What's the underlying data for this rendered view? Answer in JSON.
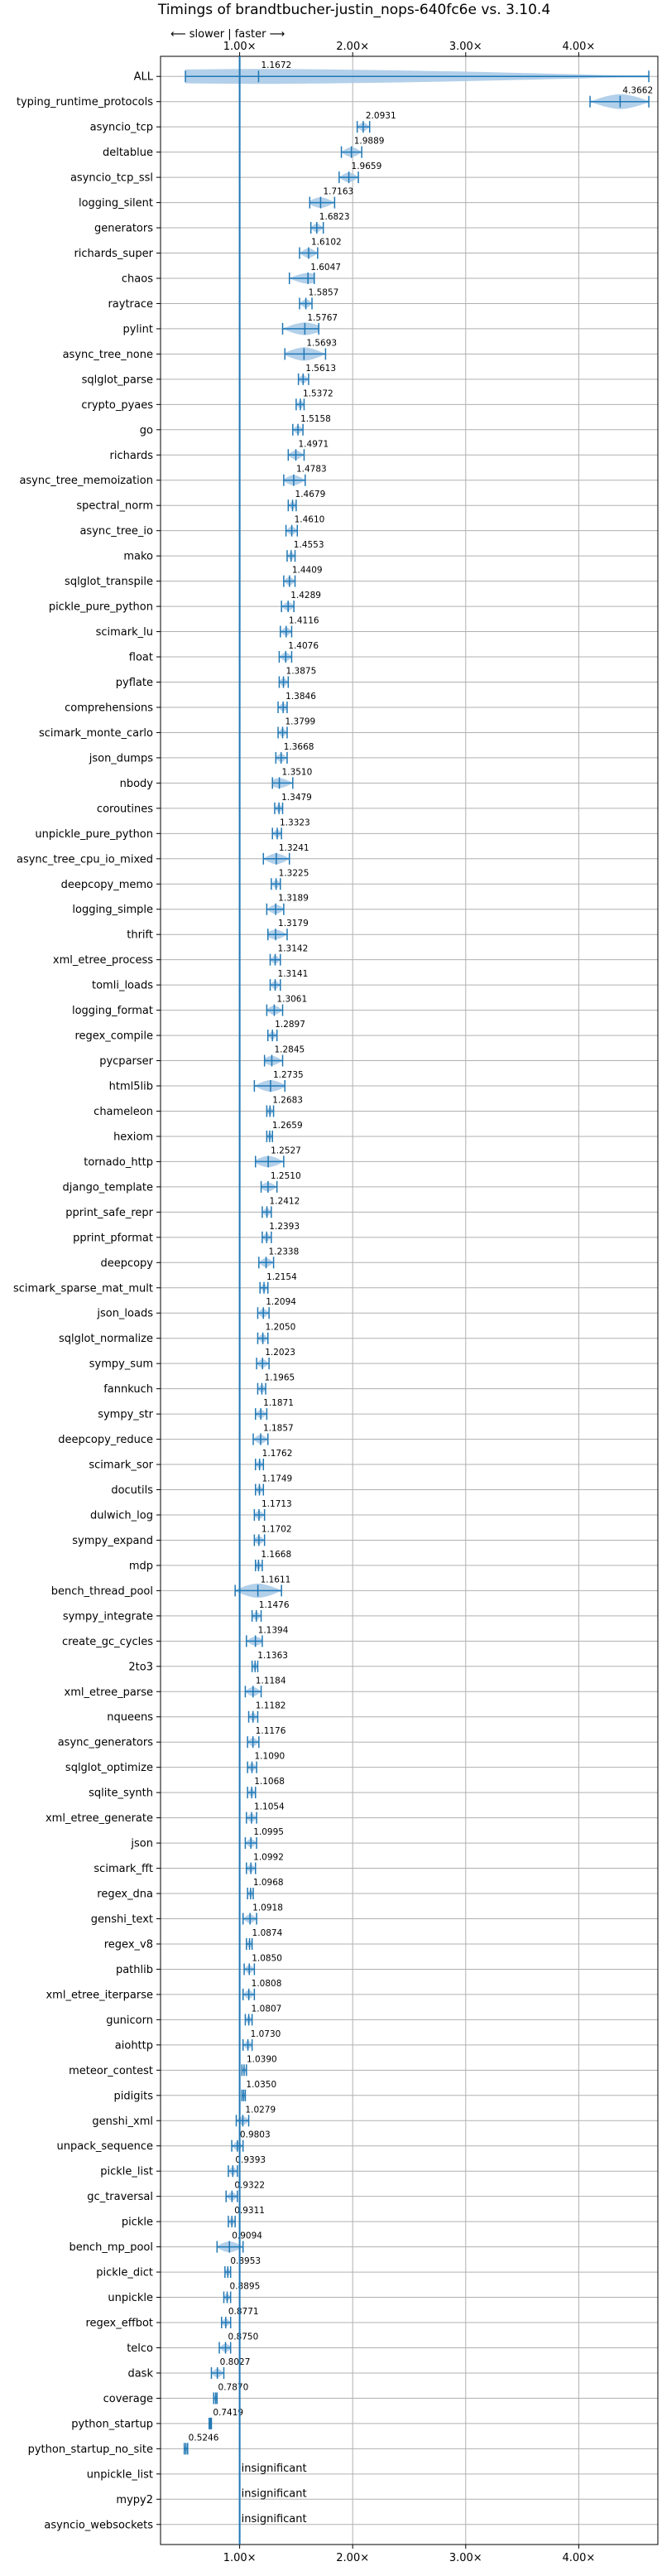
{
  "chart_data": {
    "type": "violin",
    "title": "Timings of brandtbucher-justin_nops-640fc6e vs. 3.10.4",
    "direction_label": "⟵ slower | faster ⟶",
    "xlim": [
      0.3,
      4.7
    ],
    "x_ticks": [
      1.0,
      2.0,
      3.0,
      4.0
    ],
    "x_tick_labels": [
      "1.00×",
      "2.00×",
      "3.00×",
      "4.00×"
    ],
    "reference_x": 1.0,
    "colors": {
      "violin": "#a6c8e6",
      "line": "#1f77b4",
      "reference": "#1f77b4",
      "grid": "#b0b0b0",
      "highlight": "#d62728"
    },
    "benchmarks": [
      {
        "name": "ALL",
        "value": 1.1672,
        "label": "1.1672",
        "low": 0.52,
        "high": 4.62
      },
      {
        "name": "typing_runtime_protocols",
        "value": 4.3662,
        "label": "4.3662",
        "low": 4.1,
        "high": 4.62
      },
      {
        "name": "asyncio_tcp",
        "value": 2.0931,
        "label": "2.0931",
        "low": 2.04,
        "high": 2.15
      },
      {
        "name": "deltablue",
        "value": 1.9889,
        "label": "1.9889",
        "low": 1.9,
        "high": 2.08
      },
      {
        "name": "asyncio_tcp_ssl",
        "value": 1.9659,
        "label": "1.9659",
        "low": 1.88,
        "high": 2.05
      },
      {
        "name": "logging_silent",
        "value": 1.7163,
        "label": "1.7163",
        "low": 1.62,
        "high": 1.84
      },
      {
        "name": "generators",
        "value": 1.6823,
        "label": "1.6823",
        "low": 1.63,
        "high": 1.74
      },
      {
        "name": "richards_super",
        "value": 1.6102,
        "label": "1.6102",
        "low": 1.53,
        "high": 1.69
      },
      {
        "name": "chaos",
        "value": 1.6047,
        "label": "1.6047",
        "low": 1.44,
        "high": 1.66
      },
      {
        "name": "raytrace",
        "value": 1.5857,
        "label": "1.5857",
        "low": 1.53,
        "high": 1.64
      },
      {
        "name": "pylint",
        "value": 1.5767,
        "label": "1.5767",
        "low": 1.38,
        "high": 1.7
      },
      {
        "name": "async_tree_none",
        "value": 1.5693,
        "label": "1.5693",
        "low": 1.4,
        "high": 1.76
      },
      {
        "name": "sqlglot_parse",
        "value": 1.5613,
        "label": "1.5613",
        "low": 1.52,
        "high": 1.61
      },
      {
        "name": "crypto_pyaes",
        "value": 1.5372,
        "label": "1.5372",
        "low": 1.5,
        "high": 1.57
      },
      {
        "name": "go",
        "value": 1.5158,
        "label": "1.5158",
        "low": 1.47,
        "high": 1.56
      },
      {
        "name": "richards",
        "value": 1.4971,
        "label": "1.4971",
        "low": 1.43,
        "high": 1.57
      },
      {
        "name": "async_tree_memoization",
        "value": 1.4783,
        "label": "1.4783",
        "low": 1.39,
        "high": 1.58
      },
      {
        "name": "spectral_norm",
        "value": 1.4679,
        "label": "1.4679",
        "low": 1.43,
        "high": 1.5
      },
      {
        "name": "async_tree_io",
        "value": 1.461,
        "label": "1.4610",
        "low": 1.41,
        "high": 1.51
      },
      {
        "name": "mako",
        "value": 1.4553,
        "label": "1.4553",
        "low": 1.42,
        "high": 1.49
      },
      {
        "name": "sqlglot_transpile",
        "value": 1.4409,
        "label": "1.4409",
        "low": 1.39,
        "high": 1.49
      },
      {
        "name": "pickle_pure_python",
        "value": 1.4289,
        "label": "1.4289",
        "low": 1.37,
        "high": 1.48
      },
      {
        "name": "scimark_lu",
        "value": 1.4116,
        "label": "1.4116",
        "low": 1.36,
        "high": 1.46
      },
      {
        "name": "float",
        "value": 1.4076,
        "label": "1.4076",
        "low": 1.35,
        "high": 1.46
      },
      {
        "name": "pyflate",
        "value": 1.3875,
        "label": "1.3875",
        "low": 1.35,
        "high": 1.43
      },
      {
        "name": "comprehensions",
        "value": 1.3846,
        "label": "1.3846",
        "low": 1.34,
        "high": 1.42
      },
      {
        "name": "scimark_monte_carlo",
        "value": 1.3799,
        "label": "1.3799",
        "low": 1.34,
        "high": 1.42
      },
      {
        "name": "json_dumps",
        "value": 1.3668,
        "label": "1.3668",
        "low": 1.32,
        "high": 1.42
      },
      {
        "name": "nbody",
        "value": 1.351,
        "label": "1.3510",
        "low": 1.29,
        "high": 1.47
      },
      {
        "name": "coroutines",
        "value": 1.3479,
        "label": "1.3479",
        "low": 1.31,
        "high": 1.38
      },
      {
        "name": "unpickle_pure_python",
        "value": 1.3323,
        "label": "1.3323",
        "low": 1.29,
        "high": 1.37
      },
      {
        "name": "async_tree_cpu_io_mixed",
        "value": 1.3241,
        "label": "1.3241",
        "low": 1.21,
        "high": 1.44
      },
      {
        "name": "deepcopy_memo",
        "value": 1.3225,
        "label": "1.3225",
        "low": 1.28,
        "high": 1.36
      },
      {
        "name": "logging_simple",
        "value": 1.3189,
        "label": "1.3189",
        "low": 1.24,
        "high": 1.39
      },
      {
        "name": "thrift",
        "value": 1.3179,
        "label": "1.3179",
        "low": 1.25,
        "high": 1.42
      },
      {
        "name": "xml_etree_process",
        "value": 1.3142,
        "label": "1.3142",
        "low": 1.27,
        "high": 1.36
      },
      {
        "name": "tomli_loads",
        "value": 1.3141,
        "label": "1.3141",
        "low": 1.27,
        "high": 1.36
      },
      {
        "name": "logging_format",
        "value": 1.3061,
        "label": "1.3061",
        "low": 1.24,
        "high": 1.38
      },
      {
        "name": "regex_compile",
        "value": 1.2897,
        "label": "1.2897",
        "low": 1.25,
        "high": 1.33
      },
      {
        "name": "pycparser",
        "value": 1.2845,
        "label": "1.2845",
        "low": 1.22,
        "high": 1.38
      },
      {
        "name": "html5lib",
        "value": 1.2735,
        "label": "1.2735",
        "low": 1.13,
        "high": 1.4
      },
      {
        "name": "chameleon",
        "value": 1.2683,
        "label": "1.2683",
        "low": 1.24,
        "high": 1.3
      },
      {
        "name": "hexiom",
        "value": 1.2659,
        "label": "1.2659",
        "low": 1.24,
        "high": 1.29
      },
      {
        "name": "tornado_http",
        "value": 1.2527,
        "label": "1.2527",
        "low": 1.14,
        "high": 1.39
      },
      {
        "name": "django_template",
        "value": 1.251,
        "label": "1.2510",
        "low": 1.19,
        "high": 1.33
      },
      {
        "name": "pprint_safe_repr",
        "value": 1.2412,
        "label": "1.2412",
        "low": 1.2,
        "high": 1.28
      },
      {
        "name": "pprint_pformat",
        "value": 1.2393,
        "label": "1.2393",
        "low": 1.2,
        "high": 1.28
      },
      {
        "name": "deepcopy",
        "value": 1.2338,
        "label": "1.2338",
        "low": 1.17,
        "high": 1.3
      },
      {
        "name": "scimark_sparse_mat_mult",
        "value": 1.2154,
        "label": "1.2154",
        "low": 1.18,
        "high": 1.25
      },
      {
        "name": "json_loads",
        "value": 1.2094,
        "label": "1.2094",
        "low": 1.16,
        "high": 1.26
      },
      {
        "name": "sqlglot_normalize",
        "value": 1.205,
        "label": "1.2050",
        "low": 1.16,
        "high": 1.25
      },
      {
        "name": "sympy_sum",
        "value": 1.2023,
        "label": "1.2023",
        "low": 1.15,
        "high": 1.26
      },
      {
        "name": "fannkuch",
        "value": 1.1965,
        "label": "1.1965",
        "low": 1.16,
        "high": 1.23
      },
      {
        "name": "sympy_str",
        "value": 1.1871,
        "label": "1.1871",
        "low": 1.14,
        "high": 1.24
      },
      {
        "name": "deepcopy_reduce",
        "value": 1.1857,
        "label": "1.1857",
        "low": 1.12,
        "high": 1.25
      },
      {
        "name": "scimark_sor",
        "value": 1.1762,
        "label": "1.1762",
        "low": 1.14,
        "high": 1.21
      },
      {
        "name": "docutils",
        "value": 1.1749,
        "label": "1.1749",
        "low": 1.14,
        "high": 1.21
      },
      {
        "name": "dulwich_log",
        "value": 1.1713,
        "label": "1.1713",
        "low": 1.13,
        "high": 1.22
      },
      {
        "name": "sympy_expand",
        "value": 1.1702,
        "label": "1.1702",
        "low": 1.13,
        "high": 1.22
      },
      {
        "name": "mdp",
        "value": 1.1668,
        "label": "1.1668",
        "low": 1.14,
        "high": 1.2
      },
      {
        "name": "bench_thread_pool",
        "value": 1.1611,
        "label": "1.1611",
        "low": 0.96,
        "high": 1.37
      },
      {
        "name": "sympy_integrate",
        "value": 1.1476,
        "label": "1.1476",
        "low": 1.11,
        "high": 1.19
      },
      {
        "name": "create_gc_cycles",
        "value": 1.1394,
        "label": "1.1394",
        "low": 1.06,
        "high": 1.2
      },
      {
        "name": "2to3",
        "value": 1.1363,
        "label": "1.1363",
        "low": 1.11,
        "high": 1.16
      },
      {
        "name": "xml_etree_parse",
        "value": 1.1184,
        "label": "1.1184",
        "low": 1.05,
        "high": 1.19
      },
      {
        "name": "nqueens",
        "value": 1.1182,
        "label": "1.1182",
        "low": 1.08,
        "high": 1.16
      },
      {
        "name": "async_generators",
        "value": 1.1176,
        "label": "1.1176",
        "low": 1.07,
        "high": 1.17
      },
      {
        "name": "sqlglot_optimize",
        "value": 1.109,
        "label": "1.1090",
        "low": 1.07,
        "high": 1.15
      },
      {
        "name": "sqlite_synth",
        "value": 1.1068,
        "label": "1.1068",
        "low": 1.07,
        "high": 1.14
      },
      {
        "name": "xml_etree_generate",
        "value": 1.1054,
        "label": "1.1054",
        "low": 1.06,
        "high": 1.15
      },
      {
        "name": "json",
        "value": 1.0995,
        "label": "1.0995",
        "low": 1.05,
        "high": 1.15
      },
      {
        "name": "scimark_fft",
        "value": 1.0992,
        "label": "1.0992",
        "low": 1.06,
        "high": 1.14
      },
      {
        "name": "regex_dna",
        "value": 1.0968,
        "label": "1.0968",
        "low": 1.07,
        "high": 1.12
      },
      {
        "name": "genshi_text",
        "value": 1.0918,
        "label": "1.0918",
        "low": 1.03,
        "high": 1.15
      },
      {
        "name": "regex_v8",
        "value": 1.0874,
        "label": "1.0874",
        "low": 1.06,
        "high": 1.11
      },
      {
        "name": "pathlib",
        "value": 1.085,
        "label": "1.0850",
        "low": 1.04,
        "high": 1.13
      },
      {
        "name": "xml_etree_iterparse",
        "value": 1.0808,
        "label": "1.0808",
        "low": 1.03,
        "high": 1.13
      },
      {
        "name": "gunicorn",
        "value": 1.0807,
        "label": "1.0807",
        "low": 1.05,
        "high": 1.11
      },
      {
        "name": "aiohttp",
        "value": 1.073,
        "label": "1.0730",
        "low": 1.03,
        "high": 1.11
      },
      {
        "name": "meteor_contest",
        "value": 1.039,
        "label": "1.0390",
        "low": 1.02,
        "high": 1.06
      },
      {
        "name": "pidigits",
        "value": 1.035,
        "label": "1.0350",
        "low": 1.02,
        "high": 1.05
      },
      {
        "name": "genshi_xml",
        "value": 1.0279,
        "label": "1.0279",
        "low": 0.97,
        "high": 1.08
      },
      {
        "name": "unpack_sequence",
        "value": 0.9803,
        "label": "0.9803",
        "low": 0.93,
        "high": 1.03
      },
      {
        "name": "pickle_list",
        "value": 0.9393,
        "label": "0.9393",
        "low": 0.9,
        "high": 0.98
      },
      {
        "name": "gc_traversal",
        "value": 0.9322,
        "label": "0.9322",
        "low": 0.88,
        "high": 0.98
      },
      {
        "name": "pickle",
        "value": 0.9311,
        "label": "0.9311",
        "low": 0.9,
        "high": 0.96
      },
      {
        "name": "bench_mp_pool",
        "value": 0.9094,
        "label": "0.9094",
        "low": 0.8,
        "high": 1.03
      },
      {
        "name": "pickle_dict",
        "value": 0.8953,
        "label": "0.8953",
        "low": 0.87,
        "high": 0.92
      },
      {
        "name": "unpickle",
        "value": 0.8895,
        "label": "0.8895",
        "low": 0.86,
        "high": 0.92
      },
      {
        "name": "regex_effbot",
        "value": 0.8771,
        "label": "0.8771",
        "low": 0.84,
        "high": 0.92
      },
      {
        "name": "telco",
        "value": 0.875,
        "label": "0.8750",
        "low": 0.82,
        "high": 0.92
      },
      {
        "name": "dask",
        "value": 0.8027,
        "label": "0.8027",
        "low": 0.75,
        "high": 0.86
      },
      {
        "name": "coverage",
        "value": 0.787,
        "label": "0.7870",
        "low": 0.77,
        "high": 0.8
      },
      {
        "name": "python_startup",
        "value": 0.7419,
        "label": "0.7419",
        "low": 0.73,
        "high": 0.75
      },
      {
        "name": "python_startup_no_site",
        "value": 0.5246,
        "label": "0.5246",
        "low": 0.51,
        "high": 0.54
      },
      {
        "name": "unpickle_list",
        "value": null,
        "label": "insignificant"
      },
      {
        "name": "mypy2",
        "value": null,
        "label": "insignificant"
      },
      {
        "name": "asyncio_websockets",
        "value": null,
        "label": "insignificant"
      }
    ]
  }
}
